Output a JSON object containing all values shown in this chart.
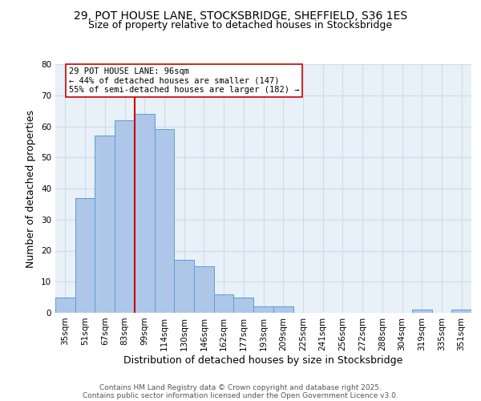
{
  "title_line1": "29, POT HOUSE LANE, STOCKSBRIDGE, SHEFFIELD, S36 1ES",
  "title_line2": "Size of property relative to detached houses in Stocksbridge",
  "xlabel": "Distribution of detached houses by size in Stocksbridge",
  "ylabel": "Number of detached properties",
  "bar_labels": [
    "35sqm",
    "51sqm",
    "67sqm",
    "83sqm",
    "99sqm",
    "114sqm",
    "130sqm",
    "146sqm",
    "162sqm",
    "177sqm",
    "193sqm",
    "209sqm",
    "225sqm",
    "241sqm",
    "256sqm",
    "272sqm",
    "288sqm",
    "304sqm",
    "319sqm",
    "335sqm",
    "351sqm"
  ],
  "bar_values": [
    5,
    37,
    57,
    62,
    64,
    59,
    17,
    15,
    6,
    5,
    2,
    2,
    0,
    0,
    0,
    0,
    0,
    0,
    1,
    0,
    1
  ],
  "bar_color": "#aec6e8",
  "bar_edge_color": "#5a9fd4",
  "reference_line_x": 4,
  "reference_line_color": "#cc0000",
  "annotation_text": "29 POT HOUSE LANE: 96sqm\n← 44% of detached houses are smaller (147)\n55% of semi-detached houses are larger (182) →",
  "annotation_box_color": "#ffffff",
  "annotation_box_edge_color": "#cc0000",
  "ylim": [
    0,
    80
  ],
  "yticks": [
    0,
    10,
    20,
    30,
    40,
    50,
    60,
    70,
    80
  ],
  "grid_color": "#ccddee",
  "background_color": "#e8f0f8",
  "footnote_line1": "Contains HM Land Registry data © Crown copyright and database right 2025.",
  "footnote_line2": "Contains public sector information licensed under the Open Government Licence v3.0.",
  "title_fontsize": 10,
  "subtitle_fontsize": 9,
  "axis_label_fontsize": 9,
  "tick_fontsize": 7.5,
  "annotation_fontsize": 7.5,
  "footnote_fontsize": 6.5
}
